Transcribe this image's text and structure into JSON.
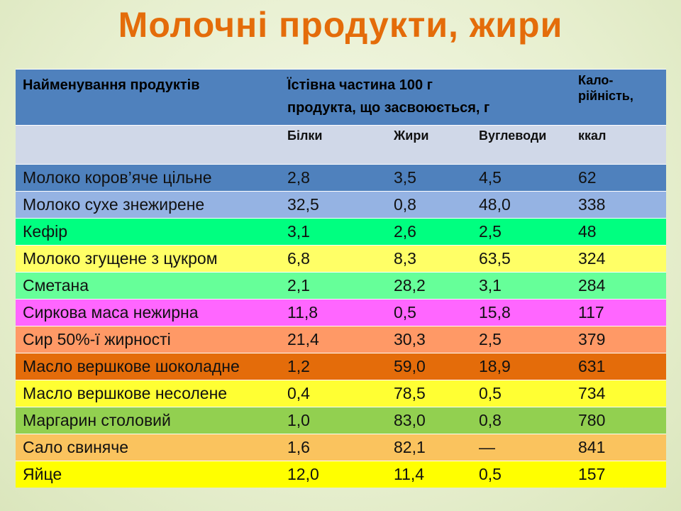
{
  "title": "Молочні продукти, жири",
  "table": {
    "header": {
      "name": "Найменування продуктів",
      "edible_line1": "Їстівна частина 100 г",
      "edible_line2": "продукта, що засвоюється, г",
      "cal_line1": "Кало-",
      "cal_line2": "рійність,"
    },
    "subheader": {
      "protein": "Білки",
      "fat": "Жири",
      "carbs": "Вуглеводи",
      "kcal": "ккал"
    },
    "rows": [
      {
        "name": "Молоко коров’яче цільне",
        "protein": "2,8",
        "fat": "3,5",
        "carbs": "4,5",
        "kcal": "62",
        "color": "#4f81bd"
      },
      {
        "name": "Молоко сухе знежирене",
        "protein": "32,5",
        "fat": "0,8",
        "carbs": "48,0",
        "kcal": "338",
        "color": "#95b3e3"
      },
      {
        "name": "Кефір",
        "protein": "3,1",
        "fat": "2,6",
        "carbs": "2,5",
        "kcal": "48",
        "color": "#00ff80"
      },
      {
        "name": "Молоко згущене з цукром",
        "protein": "6,8",
        "fat": "8,3",
        "carbs": "63,5",
        "kcal": "324",
        "color": "#ffff66"
      },
      {
        "name": "Сметана",
        "protein": "2,1",
        "fat": "28,2",
        "carbs": "3,1",
        "kcal": "284",
        "color": "#66ff99"
      },
      {
        "name": "Сиркова маса нежирна",
        "protein": "11,8",
        "fat": "0,5",
        "carbs": "15,8",
        "kcal": "117",
        "color": "#ff66ff"
      },
      {
        "name": "Сир 50%-ї жирності",
        "protein": "21,4",
        "fat": "30,3",
        "carbs": "2,5",
        "kcal": "379",
        "color": "#ff9966"
      },
      {
        "name": "Масло вершкове шоколадне",
        "protein": "1,2",
        "fat": "59,0",
        "carbs": "18,9",
        "kcal": "631",
        "color": "#e46c0a"
      },
      {
        "name": "Масло вершкове несолене",
        "protein": "0,4",
        "fat": "78,5",
        "carbs": "0,5",
        "kcal": "734",
        "color": "#ffff33"
      },
      {
        "name": "Маргарин столовий",
        "protein": "1,0",
        "fat": "83,0",
        "carbs": "0,8",
        "kcal": "780",
        "color": "#92d050"
      },
      {
        "name": "Сало свиняче",
        "protein": "1,6",
        "fat": "82,1",
        "carbs": "—",
        "kcal": "841",
        "color": "#fac35e"
      },
      {
        "name": "Яйце",
        "protein": "12,0",
        "fat": "11,4",
        "carbs": "0,5",
        "kcal": "157",
        "color": "#ffff00"
      }
    ]
  }
}
